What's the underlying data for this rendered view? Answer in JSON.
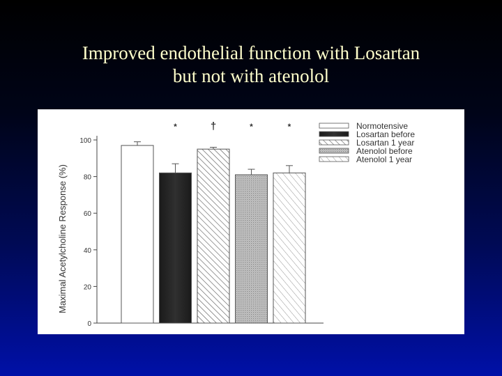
{
  "slide": {
    "title_line1": "Improved endothelial function with Losartan",
    "title_line2": "but not with atenolol"
  },
  "colors": {
    "title_text": "#ffffcc",
    "background_top": "#000000",
    "background_bottom": "#0010a8",
    "figure_background": "#ffffff"
  },
  "chart_data": {
    "type": "bar",
    "title": "",
    "xlabel": "",
    "ylabel": "Maximal Acetylcholine Response (%)",
    "ylim": [
      0,
      100
    ],
    "yticks": [
      0,
      20,
      40,
      60,
      80,
      100
    ],
    "grid": false,
    "legend_position": "top-right",
    "categories": [
      "Normotensive",
      "Losartan before",
      "Losartan 1 year",
      "Atenolol before",
      "Atenolol 1 year"
    ],
    "values": [
      97,
      82,
      95,
      81,
      82
    ],
    "errors": [
      2,
      5,
      1,
      3,
      4
    ],
    "significance": [
      "",
      "*",
      "†",
      "*",
      "*"
    ],
    "fills": [
      "white",
      "black",
      "diagonal-hatch",
      "gray-dots",
      "light-diagonal-hatch"
    ]
  }
}
